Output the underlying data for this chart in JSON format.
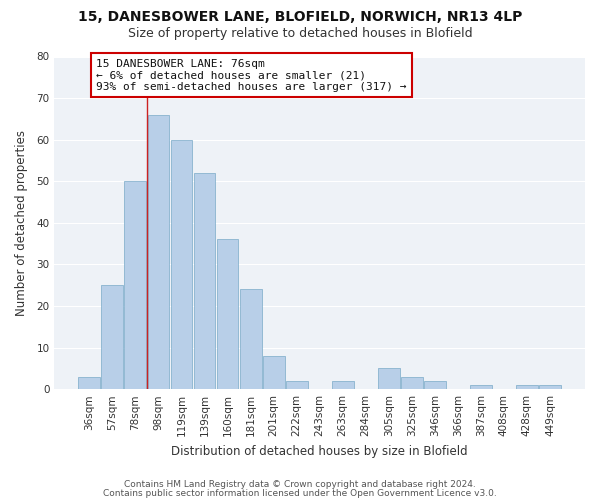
{
  "title_line1": "15, DANESBOWER LANE, BLOFIELD, NORWICH, NR13 4LP",
  "title_line2": "Size of property relative to detached houses in Blofield",
  "xlabel": "Distribution of detached houses by size in Blofield",
  "ylabel": "Number of detached properties",
  "bar_labels": [
    "36sqm",
    "57sqm",
    "78sqm",
    "98sqm",
    "119sqm",
    "139sqm",
    "160sqm",
    "181sqm",
    "201sqm",
    "222sqm",
    "243sqm",
    "263sqm",
    "284sqm",
    "305sqm",
    "325sqm",
    "346sqm",
    "366sqm",
    "387sqm",
    "408sqm",
    "428sqm",
    "449sqm"
  ],
  "bar_values": [
    3,
    25,
    50,
    66,
    60,
    52,
    36,
    24,
    8,
    2,
    0,
    2,
    0,
    5,
    3,
    2,
    0,
    1,
    0,
    1,
    1
  ],
  "bar_color": "#b8cfe8",
  "bar_edgecolor": "#7aaac8",
  "red_line_index": 2,
  "annotation_text": "15 DANESBOWER LANE: 76sqm\n← 6% of detached houses are smaller (21)\n93% of semi-detached houses are larger (317) →",
  "annotation_box_facecolor": "#ffffff",
  "annotation_box_edgecolor": "#cc0000",
  "ylim": [
    0,
    80
  ],
  "yticks": [
    0,
    10,
    20,
    30,
    40,
    50,
    60,
    70,
    80
  ],
  "footer_line1": "Contains HM Land Registry data © Crown copyright and database right 2024.",
  "footer_line2": "Contains public sector information licensed under the Open Government Licence v3.0.",
  "plot_bg_color": "#eef2f7",
  "fig_bg_color": "#ffffff",
  "grid_color": "#ffffff",
  "title_fontsize": 10,
  "subtitle_fontsize": 9,
  "axis_label_fontsize": 8.5,
  "tick_fontsize": 7.5,
  "footer_fontsize": 6.5,
  "annotation_fontsize": 8,
  "bar_width": 0.95
}
